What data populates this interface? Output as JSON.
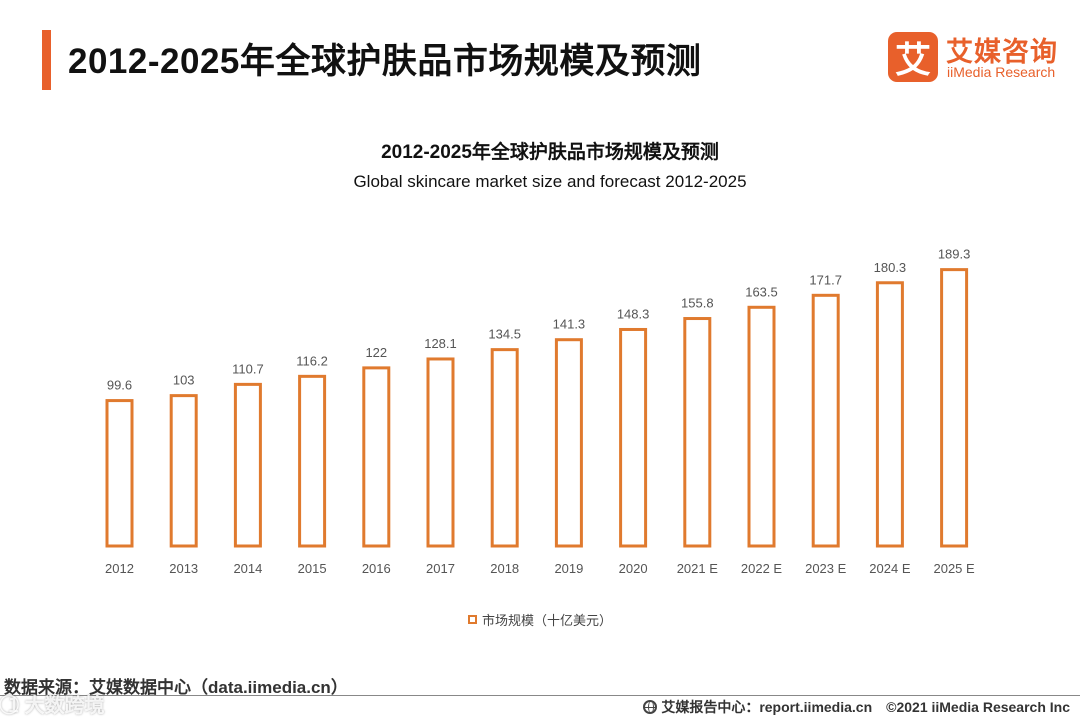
{
  "header": {
    "title": "2012-2025年全球护肤品市场规模及预测"
  },
  "logo": {
    "mark": "艾",
    "cn": "艾媒咨询",
    "en": "iiMedia Research"
  },
  "colors": {
    "accent": "#e8602b",
    "bar_stroke": "#e07a2e"
  },
  "chart_data": {
    "type": "bar",
    "title": "2012-2025年全球护肤品市场规模及预测",
    "subtitle": "Global skincare market size and forecast 2012-2025",
    "categories": [
      "2012",
      "2013",
      "2014",
      "2015",
      "2016",
      "2017",
      "2018",
      "2019",
      "2020",
      "2021 E",
      "2022 E",
      "2023 E",
      "2024 E",
      "2025 E"
    ],
    "series": [
      {
        "name": "市场规模（十亿美元）",
        "values": [
          99.6,
          103,
          110.7,
          116.2,
          122,
          128.1,
          134.5,
          141.3,
          148.3,
          155.8,
          163.5,
          171.7,
          180.3,
          189.3
        ]
      }
    ],
    "value_labels": [
      "99.6",
      "103",
      "110.7",
      "116.2",
      "122",
      "128.1",
      "134.5",
      "141.3",
      "148.3",
      "155.8",
      "163.5",
      "171.7",
      "180.3",
      "189.3"
    ],
    "ylim": [
      0,
      200
    ],
    "grid": false,
    "legend_position": "bottom"
  },
  "footer": {
    "source": "数据来源：艾媒数据中心（data.iimedia.cn）",
    "report": "艾媒报告中心：report.iimedia.cn",
    "copyright": "©2021  iiMedia Research  Inc"
  },
  "watermark": "1⃝ 大数跨境"
}
